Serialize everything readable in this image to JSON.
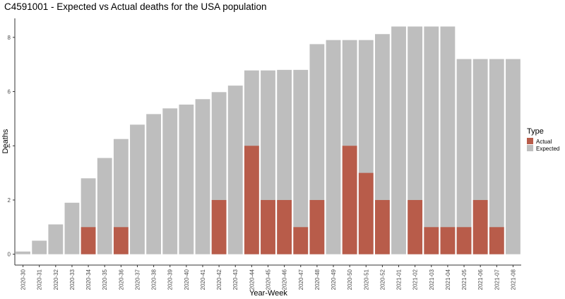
{
  "chart_data": {
    "type": "bar",
    "title": "C4591001 - Expected vs Actual deaths for the USA population",
    "xlabel": "Year-Week",
    "ylabel": "Deaths",
    "ylim": [
      -0.4,
      8.7
    ],
    "yticks": [
      0,
      2,
      4,
      6,
      8
    ],
    "grid": false,
    "legend": {
      "title": "Type",
      "position": "right"
    },
    "categories": [
      "2020-30",
      "2020-31",
      "2020-32",
      "2020-33",
      "2020-34",
      "2020-35",
      "2020-36",
      "2020-37",
      "2020-38",
      "2020-39",
      "2020-40",
      "2020-41",
      "2020-42",
      "2020-43",
      "2020-44",
      "2020-45",
      "2020-46",
      "2020-47",
      "2020-48",
      "2020-49",
      "2020-50",
      "2020-51",
      "2020-52",
      "2021-01",
      "2021-02",
      "2021-03",
      "2021-04",
      "2021-05",
      "2021-06",
      "2021-07",
      "2021-08"
    ],
    "series": [
      {
        "name": "Expected",
        "color": "#bebebe",
        "values": [
          0.1,
          0.5,
          1.1,
          1.9,
          2.8,
          3.55,
          4.25,
          4.78,
          5.17,
          5.38,
          5.52,
          5.72,
          5.98,
          6.22,
          6.78,
          6.78,
          6.8,
          6.8,
          7.75,
          7.9,
          7.9,
          7.9,
          8.12,
          8.4,
          8.4,
          8.4,
          8.4,
          7.2,
          7.2,
          7.2,
          7.2
        ]
      },
      {
        "name": "Actual",
        "color": "#b85c4a",
        "values": [
          0,
          0,
          0,
          0,
          1,
          0,
          1,
          0,
          0,
          0,
          0,
          0,
          2,
          0,
          4,
          2,
          2,
          1,
          2,
          0,
          4,
          3,
          2,
          0,
          2,
          1,
          1,
          1,
          2,
          1,
          0
        ]
      }
    ]
  }
}
